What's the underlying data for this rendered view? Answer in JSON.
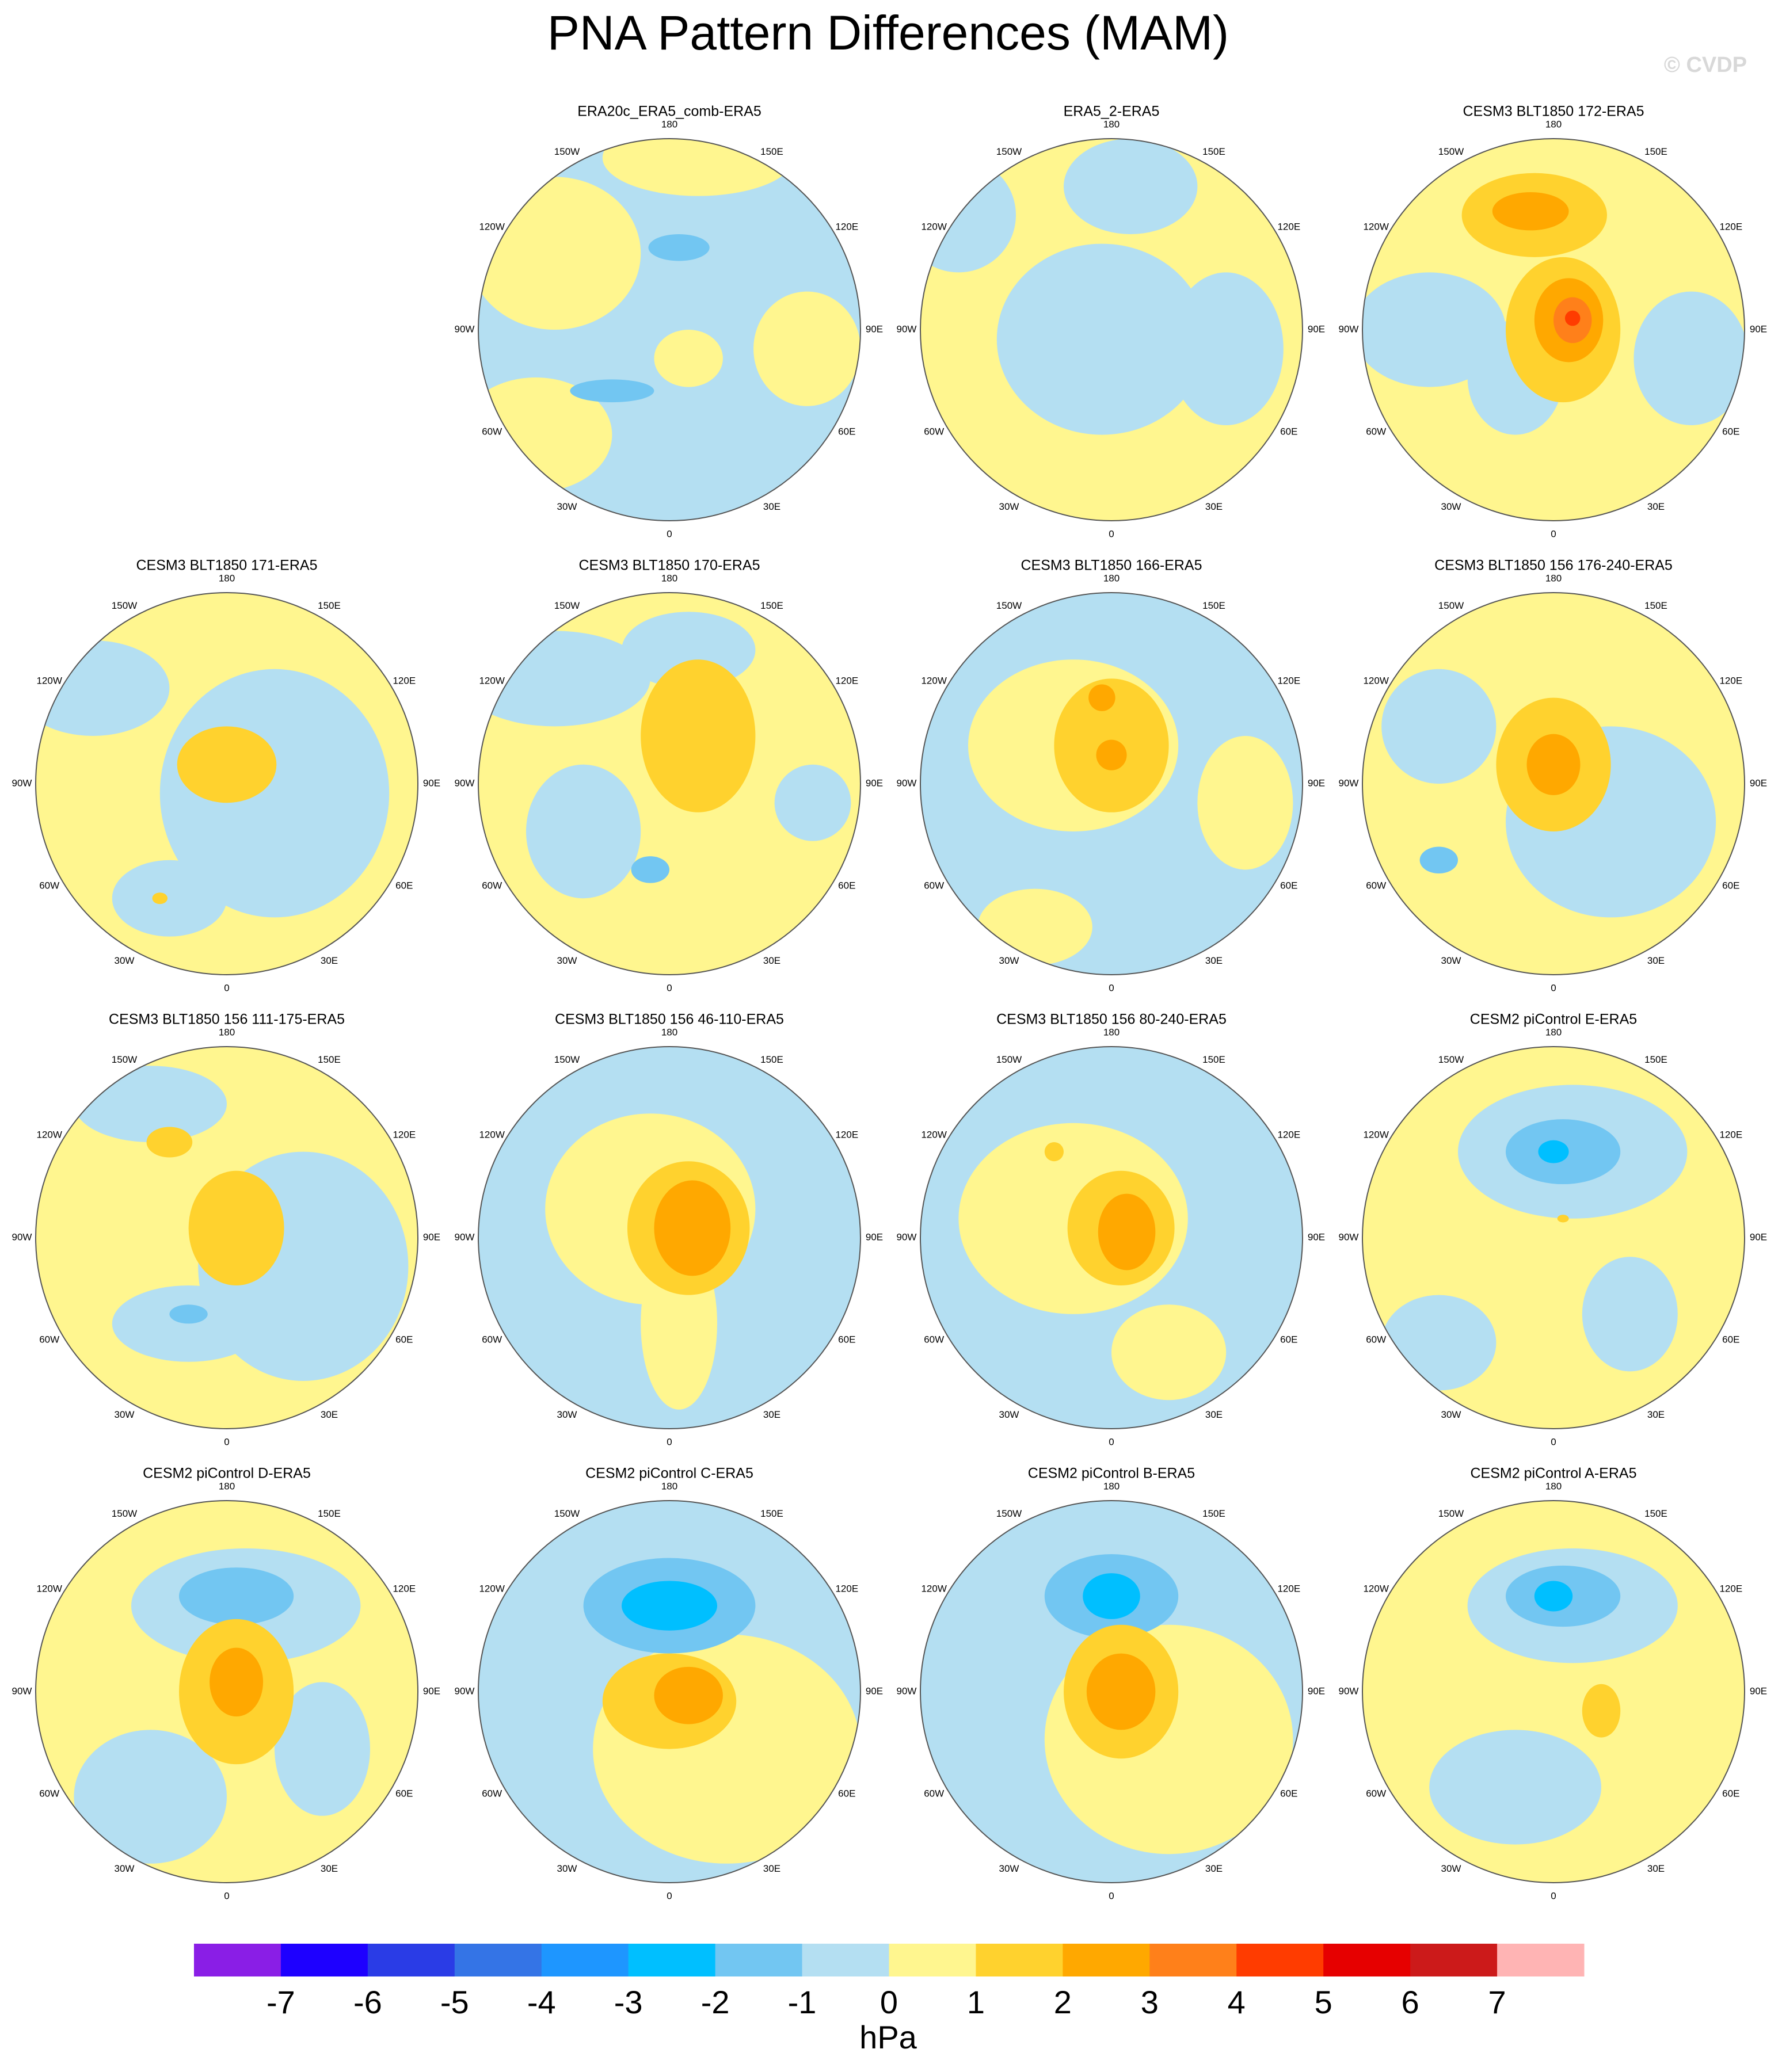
{
  "chart_data": {
    "type": "polar_contour_maps",
    "title": "PNA Pattern Differences (MAM)",
    "watermark": "© CVDP",
    "longitude_labels": [
      "180",
      "150E",
      "120E",
      "90E",
      "60E",
      "30E",
      "0",
      "30W",
      "60W",
      "90W",
      "120W",
      "150W"
    ],
    "panels": [
      {
        "title": "ERA20c_ERA5_comb-ERA5"
      },
      {
        "title": "ERA5_2-ERA5"
      },
      {
        "title": "CESM3 BLT1850 172-ERA5"
      },
      {
        "title": "CESM3 BLT1850 171-ERA5"
      },
      {
        "title": "CESM3 BLT1850 170-ERA5"
      },
      {
        "title": "CESM3 BLT1850 166-ERA5"
      },
      {
        "title": "CESM3 BLT1850 156 176-240-ERA5"
      },
      {
        "title": "CESM3 BLT1850 156 111-175-ERA5"
      },
      {
        "title": "CESM3 BLT1850 156 46-110-ERA5"
      },
      {
        "title": "CESM3 BLT1850 156 80-240-ERA5"
      },
      {
        "title": "CESM2 piControl E-ERA5"
      },
      {
        "title": "CESM2 piControl D-ERA5"
      },
      {
        "title": "CESM2 piControl C-ERA5"
      },
      {
        "title": "CESM2 piControl B-ERA5"
      },
      {
        "title": "CESM2 piControl A-ERA5"
      }
    ],
    "colorbar": {
      "colors": [
        "#8a1ee6",
        "#1e00ff",
        "#2a3ce6",
        "#3474e6",
        "#1e96ff",
        "#00bfff",
        "#72c6f2",
        "#b4dff2",
        "#fff68f",
        "#ffd22e",
        "#ffa800",
        "#ff801a",
        "#ff3c00",
        "#e60000",
        "#cc1a1a",
        "#ffb4b4"
      ],
      "ticks": [
        -7,
        -6,
        -5,
        -4,
        -3,
        -2,
        -1,
        0,
        1,
        2,
        3,
        4,
        5,
        6,
        7
      ],
      "label": "hPa"
    }
  }
}
